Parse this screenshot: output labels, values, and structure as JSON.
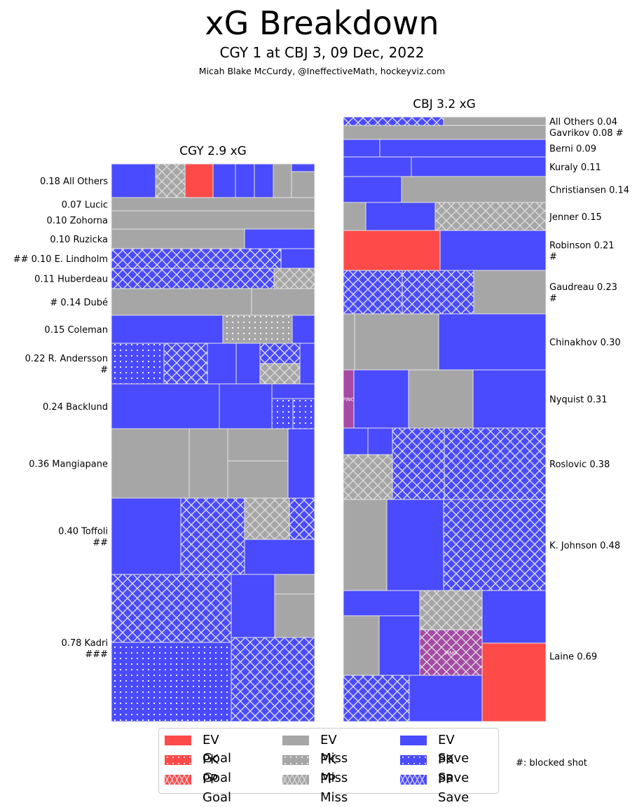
{
  "chart_data": {
    "type": "treemap",
    "title": "xG Breakdown",
    "subtitle": "CGY 1 at CBJ 3, 09 Dec, 2022",
    "credit": "Micah Blake McCurdy, @IneffectiveMath, hockeyviz.com",
    "colors": {
      "goal": "#ff4a4a",
      "miss": "#a6a6a6",
      "save": "#4a4aff",
      "penalty": "#a64aa6"
    },
    "teams": [
      {
        "name": "CGY",
        "panel_title": "CGY 2.9 xG",
        "total_xg": 2.9,
        "players": [
          {
            "label": "0.18 All Others",
            "xg": 0.18,
            "blocked": 0,
            "shots": [
              [
                "EV",
                "save"
              ],
              [
                "PP",
                "miss"
              ],
              [
                "EV",
                "goal"
              ],
              [
                "EV",
                "save"
              ],
              [
                "EV",
                "save"
              ],
              [
                "EV",
                "save"
              ],
              [
                "EV",
                "miss"
              ],
              [
                "EV",
                "save"
              ],
              [
                "EV",
                "miss"
              ]
            ]
          },
          {
            "label": "0.07 Lucic",
            "xg": 0.07,
            "blocked": 0,
            "shots": [
              [
                "EV",
                "miss"
              ]
            ]
          },
          {
            "label": "0.10 Zohorna",
            "xg": 0.1,
            "blocked": 0,
            "shots": [
              [
                "EV",
                "miss"
              ]
            ]
          },
          {
            "label": "0.10 Ruzicka",
            "xg": 0.1,
            "blocked": 0,
            "shots": [
              [
                "EV",
                "miss"
              ],
              [
                "EV",
                "save"
              ]
            ]
          },
          {
            "label": "## 0.10 E. Lindholm",
            "xg": 0.1,
            "blocked": 2,
            "shots": [
              [
                "PP",
                "save"
              ],
              [
                "EV",
                "save"
              ]
            ]
          },
          {
            "label": "0.11 Huberdeau",
            "xg": 0.11,
            "blocked": 0,
            "shots": [
              [
                "PP",
                "save"
              ],
              [
                "PP",
                "miss"
              ]
            ]
          },
          {
            "label": "# 0.14 Dubé",
            "xg": 0.14,
            "blocked": 1,
            "shots": [
              [
                "EV",
                "miss"
              ],
              [
                "EV",
                "miss"
              ]
            ]
          },
          {
            "label": "0.15 Coleman",
            "xg": 0.15,
            "blocked": 0,
            "shots": [
              [
                "EV",
                "save"
              ],
              [
                "PK",
                "miss"
              ],
              [
                "EV",
                "save"
              ]
            ]
          },
          {
            "label": "0.22 R. Andersson\n#",
            "xg": 0.22,
            "blocked": 1,
            "shots": [
              [
                "PK",
                "save"
              ],
              [
                "PP",
                "save"
              ],
              [
                "EV",
                "save"
              ],
              [
                "EV",
                "save"
              ],
              [
                "PP",
                "save"
              ],
              [
                "PP",
                "miss"
              ],
              [
                "EV",
                "save"
              ]
            ]
          },
          {
            "label": "0.24 Backlund",
            "xg": 0.24,
            "blocked": 0,
            "shots": [
              [
                "EV",
                "save"
              ],
              [
                "EV",
                "save"
              ],
              [
                "EV",
                "save"
              ],
              [
                "PK",
                "save"
              ],
              [
                "PK",
                "save"
              ]
            ]
          },
          {
            "label": "0.36 Mangiapane",
            "xg": 0.36,
            "blocked": 0,
            "shots": [
              [
                "EV",
                "miss"
              ],
              [
                "EV",
                "miss"
              ],
              [
                "EV",
                "miss"
              ],
              [
                "EV",
                "miss"
              ],
              [
                "EV",
                "save"
              ]
            ]
          },
          {
            "label": "0.40 Toffoli\n##",
            "xg": 0.4,
            "blocked": 2,
            "shots": [
              [
                "EV",
                "save"
              ],
              [
                "PP",
                "save"
              ],
              [
                "PP",
                "miss"
              ],
              [
                "PP",
                "save"
              ],
              [
                "EV",
                "save"
              ]
            ]
          },
          {
            "label": "0.78 Kadri\n###",
            "xg": 0.78,
            "blocked": 3,
            "shots": [
              [
                "PP",
                "save"
              ],
              [
                "PK",
                "save"
              ],
              [
                "EV",
                "save"
              ],
              [
                "EV",
                "miss"
              ],
              [
                "EV",
                "miss"
              ],
              [
                "PP",
                "save"
              ]
            ]
          }
        ]
      },
      {
        "name": "CBJ",
        "panel_title": "CBJ 3.2 xG",
        "total_xg": 3.2,
        "players": [
          {
            "label": "All Others 0.04",
            "xg": 0.04,
            "blocked": 0,
            "shots": [
              [
                "PP",
                "save"
              ],
              [
                "EV",
                "miss"
              ]
            ]
          },
          {
            "label": "Gavrikov 0.08 #",
            "xg": 0.08,
            "blocked": 1,
            "shots": [
              [
                "EV",
                "miss"
              ]
            ]
          },
          {
            "label": "Berni 0.09",
            "xg": 0.09,
            "blocked": 0,
            "shots": [
              [
                "EV",
                "save"
              ],
              [
                "EV",
                "save"
              ]
            ]
          },
          {
            "label": "Kuraly 0.11",
            "xg": 0.11,
            "blocked": 0,
            "shots": [
              [
                "EV",
                "save"
              ],
              [
                "EV",
                "save"
              ]
            ]
          },
          {
            "label": "Christiansen 0.14",
            "xg": 0.14,
            "blocked": 0,
            "shots": [
              [
                "EV",
                "save"
              ],
              [
                "EV",
                "miss"
              ]
            ]
          },
          {
            "label": "Jenner 0.15",
            "xg": 0.15,
            "blocked": 0,
            "shots": [
              [
                "EV",
                "miss"
              ],
              [
                "EV",
                "save"
              ],
              [
                "PP",
                "miss"
              ]
            ]
          },
          {
            "label": "Robinson 0.21\n#",
            "xg": 0.21,
            "blocked": 1,
            "shots": [
              [
                "EV",
                "goal"
              ],
              [
                "EV",
                "save"
              ]
            ]
          },
          {
            "label": "Gaudreau 0.23\n#",
            "xg": 0.23,
            "blocked": 1,
            "shots": [
              [
                "PP",
                "save"
              ],
              [
                "PP",
                "save"
              ],
              [
                "EV",
                "miss"
              ]
            ]
          },
          {
            "label": "Chinakhov 0.30",
            "xg": 0.3,
            "blocked": 0,
            "shots": [
              [
                "EV",
                "miss"
              ],
              [
                "EV",
                "miss"
              ],
              [
                "EV",
                "save"
              ]
            ]
          },
          {
            "label": "Nyquist 0.31",
            "xg": 0.31,
            "blocked": 0,
            "shots": [
              [
                "EV",
                "penalty",
                "PING"
              ],
              [
                "EV",
                "save"
              ],
              [
                "EV",
                "miss"
              ],
              [
                "EV",
                "save"
              ]
            ]
          },
          {
            "label": "Roslovic 0.38",
            "xg": 0.38,
            "blocked": 0,
            "shots": [
              [
                "EV",
                "save"
              ],
              [
                "EV",
                "save"
              ],
              [
                "PP",
                "miss"
              ],
              [
                "PP",
                "save"
              ],
              [
                "PP",
                "save"
              ]
            ]
          },
          {
            "label": "K. Johnson 0.48",
            "xg": 0.48,
            "blocked": 0,
            "shots": [
              [
                "EV",
                "miss"
              ],
              [
                "EV",
                "save"
              ],
              [
                "PP",
                "save"
              ]
            ]
          },
          {
            "label": "Laine 0.69",
            "xg": 0.69,
            "blocked": 0,
            "shots": [
              [
                "EV",
                "save"
              ],
              [
                "EV",
                "miss"
              ],
              [
                "EV",
                "save"
              ],
              [
                "PP",
                "miss"
              ],
              [
                "PP",
                "penalty",
                "PING"
              ],
              [
                "EV",
                "save"
              ],
              [
                "PP",
                "save"
              ],
              [
                "EV",
                "save"
              ],
              [
                "EV",
                "goal"
              ]
            ]
          }
        ]
      }
    ],
    "legend": {
      "position": "bottom-center",
      "entries": [
        {
          "label": "EV Goal",
          "kind": "goal",
          "strength": "EV"
        },
        {
          "label": "PK Goal",
          "kind": "goal",
          "strength": "PK"
        },
        {
          "label": "PP Goal",
          "kind": "goal",
          "strength": "PP"
        },
        {
          "label": "EV Miss",
          "kind": "miss",
          "strength": "EV"
        },
        {
          "label": "PK Miss",
          "kind": "miss",
          "strength": "PK"
        },
        {
          "label": "PP Miss",
          "kind": "miss",
          "strength": "PP"
        },
        {
          "label": "EV Save",
          "kind": "save",
          "strength": "EV"
        },
        {
          "label": "PK Save",
          "kind": "save",
          "strength": "PK"
        },
        {
          "label": "PP Save",
          "kind": "save",
          "strength": "PP"
        }
      ],
      "note": "#: blocked shot"
    }
  }
}
